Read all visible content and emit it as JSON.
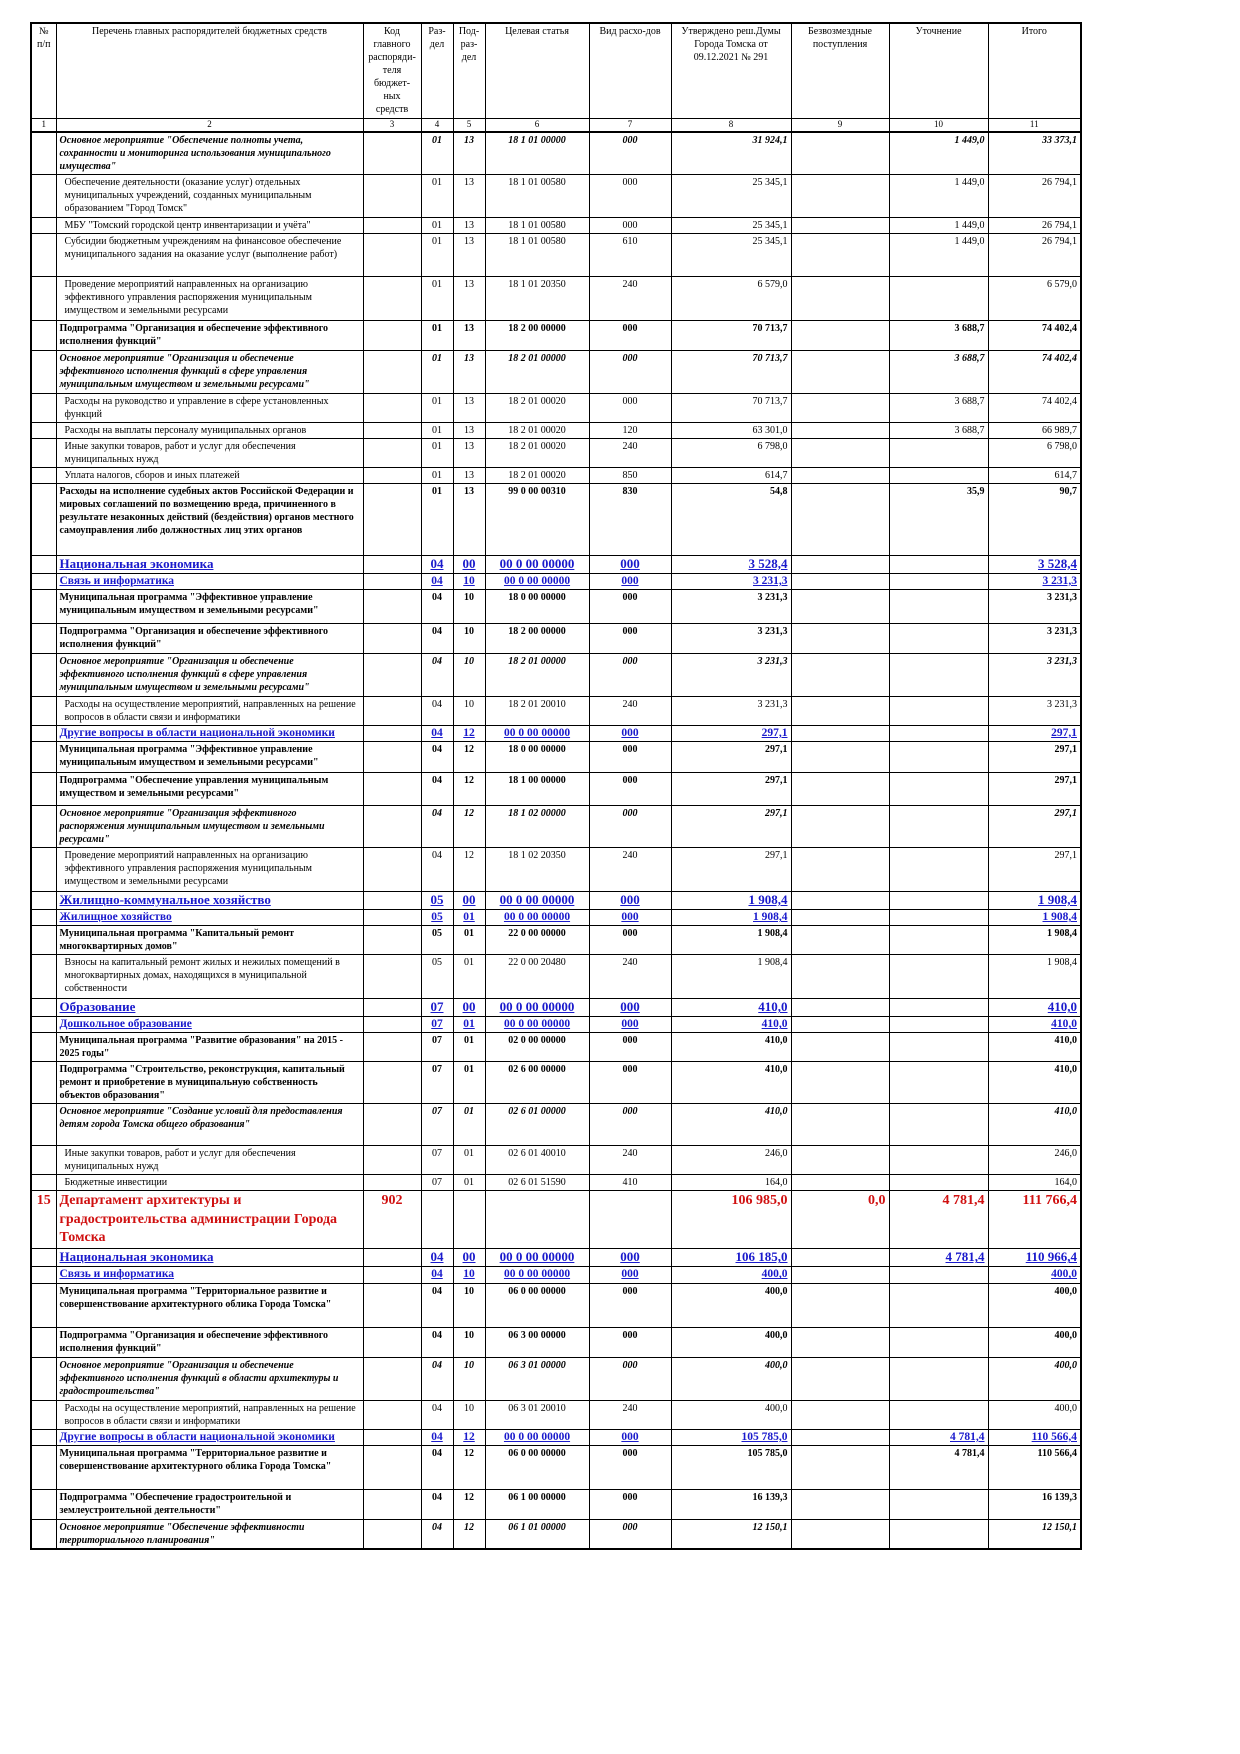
{
  "table": {
    "header": [
      "№ п/п",
      "Перечень главных распорядителей бюджетных средств",
      "Код главного распоряди-теля бюджет-ных средств",
      "Раз-дел",
      "Под-раз-дел",
      "Целевая статья",
      "Вид расхо-дов",
      "Утверждено реш.Думы Города Томска от 09.12.2021 № 291",
      "Безвозмездные поступления",
      "Уточнение",
      "Итого"
    ],
    "column_numbers": [
      "1",
      "2",
      "3",
      "4",
      "5",
      "6",
      "7",
      "8",
      "9",
      "10",
      "11"
    ],
    "rows": [
      [
        null,
        "Основное мероприятие \"Обеспечение полноты учета, сохранности и мониторинга использования муниципального имущества\"",
        null,
        "01",
        "13",
        "18 1 01 00000",
        "000",
        "31 924,1",
        null,
        "1 449,0",
        "33 373,1"
      ],
      [
        null,
        "Обеспечение деятельности (оказание услуг) отдельных муниципальных учреждений, созданных муниципальным образованием \"Город Томск\"",
        null,
        "01",
        "13",
        "18 1 01 00580",
        "000",
        "25 345,1",
        null,
        "1 449,0",
        "26 794,1"
      ],
      [
        null,
        "МБУ \"Томский городской центр инвентаризации и учёта\"",
        null,
        "01",
        "13",
        "18 1 01 00580",
        "000",
        "25 345,1",
        null,
        "1 449,0",
        "26 794,1"
      ],
      [
        null,
        "Субсидии бюджетным учреждениям на финансовое обеспечение муниципального задания на оказание услуг (выполнение работ)",
        null,
        "01",
        "13",
        "18 1 01 00580",
        "610",
        "25 345,1",
        null,
        "1 449,0",
        "26 794,1"
      ],
      [
        null,
        "Проведение мероприятий направленных на организацию эффективного управления распоряжения муниципальным имуществом и земельными ресурсами",
        null,
        "01",
        "13",
        "18 1 01 20350",
        "240",
        "6 579,0",
        null,
        null,
        "6 579,0"
      ],
      [
        null,
        "Подпрограмма \"Организация и обеспечение эффективного исполнения функций\"",
        null,
        "01",
        "13",
        "18 2 00 00000",
        "000",
        "70 713,7",
        null,
        "3 688,7",
        "74 402,4"
      ],
      [
        null,
        "Основное мероприятие \"Организация и обеспечение эффективного исполнения функций в сфере управления муниципальным имуществом и земельными ресурсами\"",
        null,
        "01",
        "13",
        "18 2 01 00000",
        "000",
        "70 713,7",
        null,
        "3 688,7",
        "74 402,4"
      ],
      [
        null,
        "Расходы на руководство и управление в сфере установленных функций",
        null,
        "01",
        "13",
        "18 2 01 00020",
        "000",
        "70 713,7",
        null,
        "3 688,7",
        "74 402,4"
      ],
      [
        null,
        "Расходы на выплаты персоналу муниципальных органов",
        null,
        "01",
        "13",
        "18 2 01 00020",
        "120",
        "63 301,0",
        null,
        "3 688,7",
        "66 989,7"
      ],
      [
        null,
        "Иные закупки товаров, работ и услуг для обеспечения муниципальных нужд",
        null,
        "01",
        "13",
        "18 2 01 00020",
        "240",
        "6 798,0",
        null,
        null,
        "6 798,0"
      ],
      [
        null,
        "Уплата налогов, сборов и иных платежей",
        null,
        "01",
        "13",
        "18 2 01 00020",
        "850",
        "614,7",
        null,
        null,
        "614,7"
      ],
      [
        null,
        "Расходы на исполнение судебных актов Российской Федерации и мировых соглашений по возмещению вреда, причиненного в результате незаконных действий (бездействия) органов местного самоуправления либо должностных лиц этих органов",
        null,
        "01",
        "13",
        "99 0 00 00310",
        "830",
        "54,8",
        null,
        "35,9",
        "90,7"
      ],
      [
        null,
        "Национальная экономика",
        null,
        "04",
        "00",
        "00 0 00 00000",
        "000",
        "3 528,4",
        null,
        null,
        "3 528,4"
      ],
      [
        null,
        "Связь и информатика",
        null,
        "04",
        "10",
        "00 0 00 00000",
        "000",
        "3 231,3",
        null,
        null,
        "3 231,3"
      ],
      [
        null,
        "Муниципальная программа \"Эффективное управление муниципальным имуществом и земельными ресурсами\"",
        null,
        "04",
        "10",
        "18 0 00 00000",
        "000",
        "3 231,3",
        null,
        null,
        "3 231,3"
      ],
      [
        null,
        "Подпрограмма \"Организация и обеспечение эффективного исполнения функций\"",
        null,
        "04",
        "10",
        "18 2 00 00000",
        "000",
        "3 231,3",
        null,
        null,
        "3 231,3"
      ],
      [
        null,
        "Основное мероприятие \"Организация и обеспечение эффективного исполнения функций в сфере управления муниципальным имуществом и земельными ресурсами\"",
        null,
        "04",
        "10",
        "18 2 01 00000",
        "000",
        "3 231,3",
        null,
        null,
        "3 231,3"
      ],
      [
        null,
        "Расходы на осуществление мероприятий, направленных на решение вопросов в области связи и информатики",
        null,
        "04",
        "10",
        "18 2 01 20010",
        "240",
        "3 231,3",
        null,
        null,
        "3 231,3"
      ],
      [
        null,
        "Другие вопросы в области национальной экономики",
        null,
        "04",
        "12",
        "00 0 00 00000",
        "000",
        "297,1",
        null,
        null,
        "297,1"
      ],
      [
        null,
        "Муниципальная программа \"Эффективное управление муниципальным имуществом и земельными ресурсами\"",
        null,
        "04",
        "12",
        "18 0 00 00000",
        "000",
        "297,1",
        null,
        null,
        "297,1"
      ],
      [
        null,
        "Подпрограмма \"Обеспечение управления муниципальным имуществом и земельными ресурсами\"",
        null,
        "04",
        "12",
        "18 1 00 00000",
        "000",
        "297,1",
        null,
        null,
        "297,1"
      ],
      [
        null,
        "Основное мероприятие \"Организация эффективного распоряжения муниципальным имуществом и земельными ресурсами\"",
        null,
        "04",
        "12",
        "18 1 02 00000",
        "000",
        "297,1",
        null,
        null,
        "297,1"
      ],
      [
        null,
        "Проведение мероприятий направленных на организацию эффективного управления распоряжения муниципальным имуществом и земельными ресурсами",
        null,
        "04",
        "12",
        "18 1 02 20350",
        "240",
        "297,1",
        null,
        null,
        "297,1"
      ],
      [
        null,
        "Жилищно-коммунальное хозяйство",
        null,
        "05",
        "00",
        "00 0 00 00000",
        "000",
        "1 908,4",
        null,
        null,
        "1 908,4"
      ],
      [
        null,
        "Жилищное хозяйство",
        null,
        "05",
        "01",
        "00 0 00 00000",
        "000",
        "1 908,4",
        null,
        null,
        "1 908,4"
      ],
      [
        null,
        "Муниципальная программа \"Капитальный ремонт многоквартирных домов\"",
        null,
        "05",
        "01",
        "22 0 00 00000",
        "000",
        "1 908,4",
        null,
        null,
        "1 908,4"
      ],
      [
        null,
        "Взносы на капитальный ремонт жилых и нежилых помещений в многоквартирных домах, находящихся в муниципальной собственности",
        null,
        "05",
        "01",
        "22 0 00 20480",
        "240",
        "1 908,4",
        null,
        null,
        "1 908,4"
      ],
      [
        null,
        "Образование",
        null,
        "07",
        "00",
        "00 0 00 00000",
        "000",
        "410,0",
        null,
        null,
        "410,0"
      ],
      [
        null,
        "Дошкольное образование",
        null,
        "07",
        "01",
        "00 0 00 00000",
        "000",
        "410,0",
        null,
        null,
        "410,0"
      ],
      [
        null,
        "Муниципальная программа \"Развитие образования\" на 2015 - 2025 годы\"",
        null,
        "07",
        "01",
        "02 0 00 00000",
        "000",
        "410,0",
        null,
        null,
        "410,0"
      ],
      [
        null,
        "Подпрограмма \"Строительство, реконструкция, капитальный ремонт и приобретение в муниципальную собственность объектов образования\"",
        null,
        "07",
        "01",
        "02 6 00 00000",
        "000",
        "410,0",
        null,
        null,
        "410,0"
      ],
      [
        null,
        "Основное мероприятие \"Создание условий для предоставления детям города Томска общего образования\"",
        null,
        "07",
        "01",
        "02 6 01 00000",
        "000",
        "410,0",
        null,
        null,
        "410,0"
      ],
      [
        null,
        "Иные закупки товаров, работ и услуг для обеспечения муниципальных нужд",
        null,
        "07",
        "01",
        "02 6 01 40010",
        "240",
        "246,0",
        null,
        null,
        "246,0"
      ],
      [
        null,
        "Бюджетные инвестиции",
        null,
        "07",
        "01",
        "02 6 01 51590",
        "410",
        "164,0",
        null,
        null,
        "164,0"
      ],
      [
        "15",
        "Департамент архитектуры и градостроительства администрации Города Томска",
        "902",
        null,
        null,
        null,
        null,
        "106 985,0",
        "0,0",
        "4 781,4",
        "111 766,4"
      ],
      [
        null,
        "Национальная экономика",
        null,
        "04",
        "00",
        "00 0 00 00000",
        "000",
        "106 185,0",
        null,
        "4 781,4",
        "110 966,4"
      ],
      [
        null,
        "Связь и информатика",
        null,
        "04",
        "10",
        "00 0 00 00000",
        "000",
        "400,0",
        null,
        null,
        "400,0"
      ],
      [
        null,
        "Муниципальная программа \"Территориальное развитие и совершенствование архитектурного облика Города Томска\"",
        null,
        "04",
        "10",
        "06 0 00 00000",
        "000",
        "400,0",
        null,
        null,
        "400,0"
      ],
      [
        null,
        "Подпрограмма \"Организация и обеспечение эффективного исполнения функций\"",
        null,
        "04",
        "10",
        "06 3 00 00000",
        "000",
        "400,0",
        null,
        null,
        "400,0"
      ],
      [
        null,
        "Основное мероприятие \"Организация и обеспечение эффективного исполнения функций в области архитектуры и градостроительства\"",
        null,
        "04",
        "10",
        "06 3 01 00000",
        "000",
        "400,0",
        null,
        null,
        "400,0"
      ],
      [
        null,
        "Расходы на осуществление мероприятий, направленных на решение вопросов в области связи и информатики",
        null,
        "04",
        "10",
        "06 3 01 20010",
        "240",
        "400,0",
        null,
        null,
        "400,0"
      ],
      [
        null,
        "Другие вопросы в области национальной экономики",
        null,
        "04",
        "12",
        "00 0 00 00000",
        "000",
        "105 785,0",
        null,
        "4 781,4",
        "110 566,4"
      ],
      [
        null,
        "Муниципальная программа \"Территориальное развитие и совершенствование архитектурного облика Города Томска\"",
        null,
        "04",
        "12",
        "06 0 00 00000",
        "000",
        "105 785,0",
        null,
        "4 781,4",
        "110 566,4"
      ],
      [
        null,
        "Подпрограмма \"Обеспечение градостроительной и землеустроительной деятельности\"",
        null,
        "04",
        "12",
        "06 1 00 00000",
        "000",
        "16 139,3",
        null,
        null,
        "16 139,3"
      ],
      [
        null,
        "Основное мероприятие \"Обеспечение эффективности территориального планирования\"",
        null,
        "04",
        "12",
        "06 1 01 00000",
        "000",
        "12 150,1",
        null,
        null,
        "12 150,1"
      ]
    ]
  }
}
